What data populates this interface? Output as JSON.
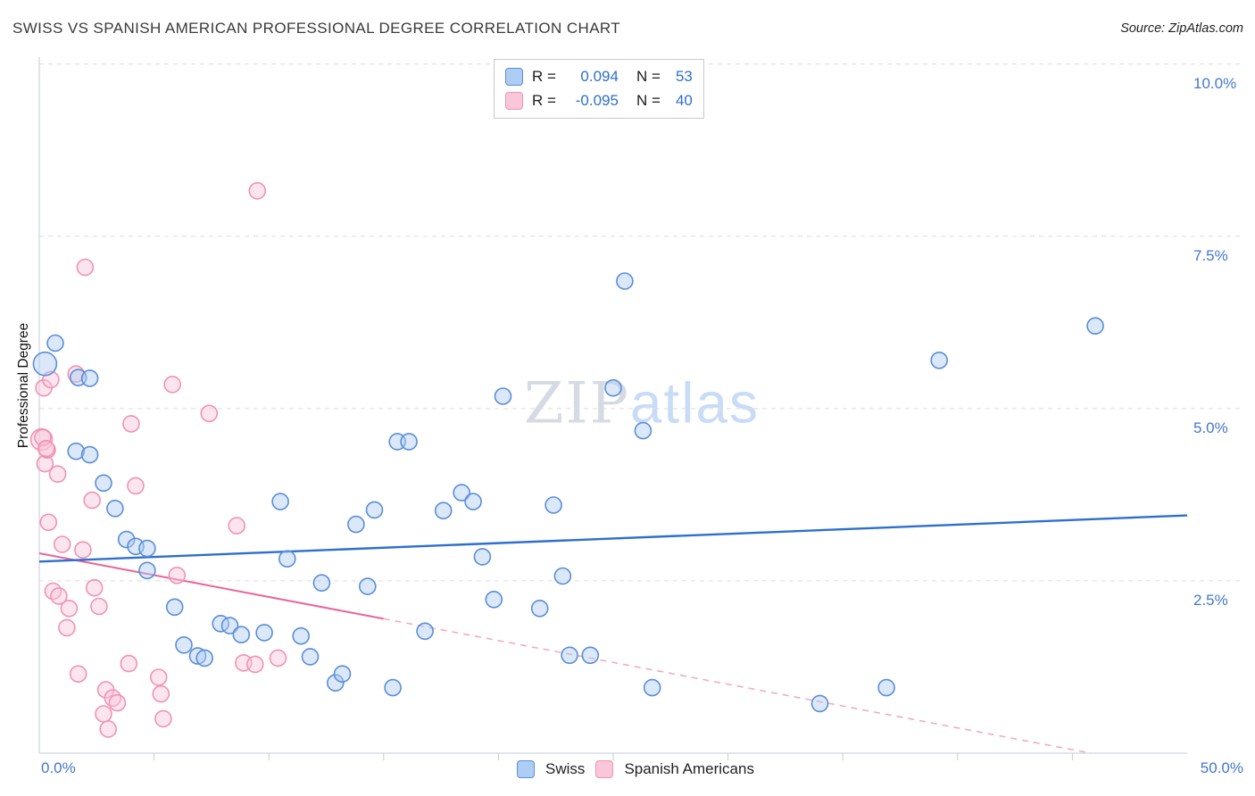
{
  "header": {
    "title": "SWISS VS SPANISH AMERICAN PROFESSIONAL DEGREE CORRELATION CHART",
    "source": "Source: ZipAtlas.com"
  },
  "watermark": {
    "zip": "ZIP",
    "atlas": "atlas"
  },
  "axes": {
    "y_label": "Professional Degree",
    "x_min_label": "0.0%",
    "x_max_label": "50.0%",
    "y_tick_labels": [
      "10.0%",
      "7.5%",
      "5.0%",
      "2.5%"
    ],
    "y_tick_values": [
      10,
      7.5,
      5,
      2.5
    ]
  },
  "legend_box": {
    "rows": [
      {
        "r_label": "R =",
        "r_value": "0.094",
        "n_label": "N =",
        "n_value": "53"
      },
      {
        "r_label": "R =",
        "r_value": "-0.095",
        "n_label": "N =",
        "n_value": "40"
      }
    ]
  },
  "bottom_legend": [
    {
      "label": "Swiss"
    },
    {
      "label": "Spanish Americans"
    }
  ],
  "colors": {
    "swiss_fill": "#aecdf5",
    "swiss_stroke": "#5b8ed6",
    "swiss_trend": "#2e6fce",
    "spanish_fill": "#f9c6da",
    "spanish_stroke": "#f093b4",
    "spanish_trend": "#e8659a",
    "spanish_trend_dash": "#f2abc4",
    "axis_label": "#4477cc",
    "grid": "#dcdcdc",
    "value_text": "#2e6fce"
  },
  "chart_data": {
    "type": "scatter",
    "title": "SWISS VS SPANISH AMERICAN PROFESSIONAL DEGREE CORRELATION CHART",
    "xlabel": "",
    "ylabel": "Professional Degree",
    "xlim": [
      0,
      50
    ],
    "ylim": [
      0,
      10.1
    ],
    "x_tick_step": 5,
    "grid": "dashed-horizontal",
    "legend_position": "top-center",
    "series": [
      {
        "name": "Swiss",
        "key": "swiss",
        "R": 0.094,
        "N": 53,
        "fill": "#aecdf5",
        "stroke": "#5b8ed6",
        "trend_color": "#2e6fce",
        "trend": {
          "x1": 0,
          "y1": 2.78,
          "x2": 50,
          "y2": 3.45
        },
        "points": [
          [
            0.25,
            5.65,
            13
          ],
          [
            0.7,
            5.95
          ],
          [
            1.7,
            5.45
          ],
          [
            2.2,
            5.44
          ],
          [
            1.6,
            4.38
          ],
          [
            2.2,
            4.33
          ],
          [
            2.8,
            3.92
          ],
          [
            3.3,
            3.55
          ],
          [
            3.8,
            3.1
          ],
          [
            4.2,
            3.0
          ],
          [
            4.7,
            2.97
          ],
          [
            4.7,
            2.65
          ],
          [
            5.9,
            2.12
          ],
          [
            6.3,
            1.57
          ],
          [
            6.9,
            1.41
          ],
          [
            7.2,
            1.38
          ],
          [
            7.9,
            1.88
          ],
          [
            8.3,
            1.85
          ],
          [
            8.8,
            1.72
          ],
          [
            9.8,
            1.75
          ],
          [
            10.5,
            3.65
          ],
          [
            10.8,
            2.82
          ],
          [
            11.4,
            1.7
          ],
          [
            11.8,
            1.4
          ],
          [
            12.3,
            2.47
          ],
          [
            12.9,
            1.02
          ],
          [
            13.2,
            1.15
          ],
          [
            13.8,
            3.32
          ],
          [
            14.3,
            2.42
          ],
          [
            14.6,
            3.53
          ],
          [
            15.4,
            0.95
          ],
          [
            15.6,
            4.52
          ],
          [
            16.1,
            4.52
          ],
          [
            16.8,
            1.77
          ],
          [
            17.6,
            3.52
          ],
          [
            18.4,
            3.78
          ],
          [
            18.9,
            3.65
          ],
          [
            19.3,
            2.85
          ],
          [
            19.8,
            2.23
          ],
          [
            20.2,
            5.18
          ],
          [
            21.8,
            2.1
          ],
          [
            22.4,
            3.6
          ],
          [
            22.8,
            2.57
          ],
          [
            23.1,
            1.42
          ],
          [
            24.0,
            1.42
          ],
          [
            25.0,
            5.3
          ],
          [
            25.5,
            6.85
          ],
          [
            26.3,
            4.68
          ],
          [
            26.7,
            0.95
          ],
          [
            34.0,
            0.72
          ],
          [
            36.9,
            0.95
          ],
          [
            39.2,
            5.7
          ],
          [
            46.0,
            6.2
          ]
        ]
      },
      {
        "name": "Spanish Americans",
        "key": "spanish",
        "R": -0.095,
        "N": 40,
        "fill": "#f9c6da",
        "stroke": "#f093b4",
        "trend_color": "#e8659a",
        "trend_dash_color": "#f2abc4",
        "trend": {
          "x1": 0,
          "y1": 2.9,
          "x2": 45.8,
          "y2": 0.0,
          "solid_until_x": 15
        },
        "points": [
          [
            0.1,
            4.55,
            12
          ],
          [
            0.2,
            5.3
          ],
          [
            0.25,
            4.2
          ],
          [
            0.35,
            4.4
          ],
          [
            0.5,
            5.42
          ],
          [
            1.6,
            5.5
          ],
          [
            2.0,
            7.05
          ],
          [
            9.5,
            8.16
          ],
          [
            0.8,
            4.05
          ],
          [
            0.4,
            3.35
          ],
          [
            0.6,
            2.35
          ],
          [
            1.0,
            3.03
          ],
          [
            1.9,
            2.95
          ],
          [
            2.3,
            3.67
          ],
          [
            4.0,
            4.78
          ],
          [
            4.2,
            3.88
          ],
          [
            5.8,
            5.35
          ],
          [
            7.4,
            4.93
          ],
          [
            8.6,
            3.3
          ],
          [
            6.0,
            2.58
          ],
          [
            0.85,
            2.28
          ],
          [
            1.3,
            2.1
          ],
          [
            2.4,
            2.4
          ],
          [
            2.6,
            2.13
          ],
          [
            1.2,
            1.82
          ],
          [
            1.7,
            1.15
          ],
          [
            2.8,
            0.57
          ],
          [
            2.9,
            0.92
          ],
          [
            3.2,
            0.8
          ],
          [
            3.4,
            0.73
          ],
          [
            3.9,
            1.3
          ],
          [
            5.2,
            1.1
          ],
          [
            5.3,
            0.86
          ],
          [
            5.4,
            0.5
          ],
          [
            3.0,
            0.35
          ],
          [
            8.9,
            1.31
          ],
          [
            9.4,
            1.29
          ],
          [
            10.4,
            1.38
          ],
          [
            0.15,
            4.58
          ],
          [
            0.3,
            4.42
          ]
        ]
      }
    ]
  }
}
